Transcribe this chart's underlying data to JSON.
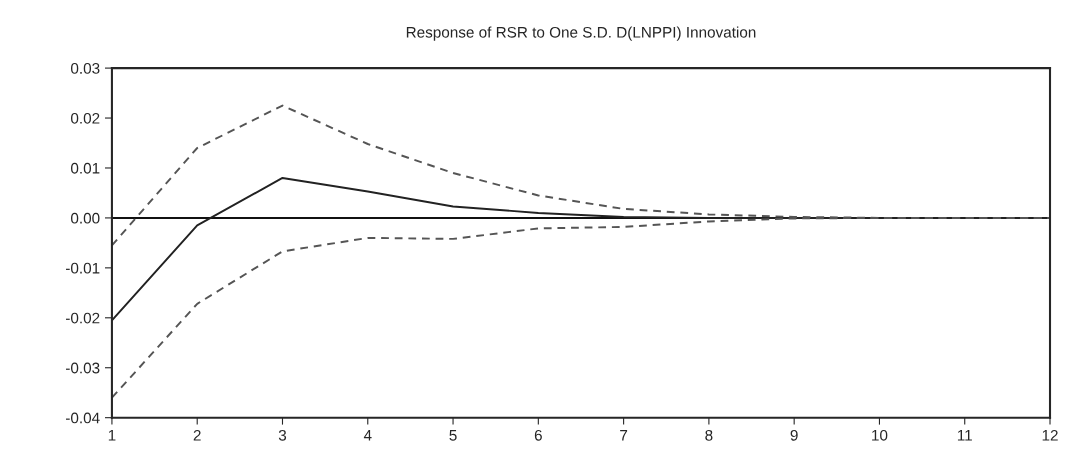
{
  "chart_data": {
    "type": "line",
    "title": "Response of RSR to One S.D. D(LNPPI) Innovation",
    "x": [
      1,
      2,
      3,
      4,
      5,
      6,
      7,
      8,
      9,
      10,
      11,
      12
    ],
    "series": [
      {
        "color": "#222222",
        "line_style": "solid",
        "values": [
          -0.0205,
          -0.0015,
          0.008,
          0.0053,
          0.0023,
          0.001,
          0.0002,
          0.0,
          0.0,
          0.0,
          0.0,
          0.0
        ]
      },
      {
        "color": "#555555",
        "line_style": "dashed",
        "values": [
          -0.0055,
          0.014,
          0.0225,
          0.0148,
          0.009,
          0.0045,
          0.0018,
          0.0007,
          0.0002,
          0.0,
          0.0,
          0.0
        ]
      },
      {
        "color": "#555555",
        "line_style": "dashed",
        "values": [
          -0.036,
          -0.0172,
          -0.0067,
          -0.004,
          -0.0042,
          -0.0021,
          -0.0018,
          -0.0007,
          -0.0001,
          0.0,
          0.0,
          0.0
        ]
      }
    ],
    "xlim": [
      1,
      12
    ],
    "xticks": [
      1,
      2,
      3,
      4,
      5,
      6,
      7,
      8,
      9,
      10,
      11,
      12
    ],
    "ylim": [
      -0.04,
      0.03
    ],
    "yticks": [
      {
        "value": -0.04,
        "label": "-0.04"
      },
      {
        "value": -0.03,
        "label": "-0.03"
      },
      {
        "value": -0.02,
        "label": "-0.02"
      },
      {
        "value": -0.01,
        "label": "-0.01"
      },
      {
        "value": 0,
        "label": "0.00"
      },
      {
        "value": 0.01,
        "label": "0.01"
      },
      {
        "value": 0.02,
        "label": "0.02"
      },
      {
        "value": 0.03,
        "label": "0.03"
      }
    ],
    "ref_lines": [
      {
        "axis": "y",
        "value": 0,
        "color": "#111111",
        "line_style": "solid"
      }
    ],
    "grid": false,
    "marker": "none"
  }
}
